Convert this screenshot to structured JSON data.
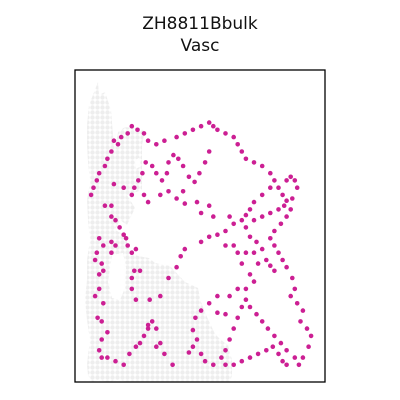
{
  "chart_data": {
    "type": "scatter",
    "title_line1": "ZH8811Bbulk",
    "title_line2": "Vasc",
    "xlabel": "",
    "ylabel": "",
    "grid": false,
    "legend": "none",
    "axis_ticks": false,
    "background_spot_color": "#eeeeee",
    "highlight_color": "#cc1f93",
    "tissue_outline": [
      [
        23,
        12
      ],
      [
        24,
        25
      ],
      [
        30,
        22
      ],
      [
        36,
        40
      ],
      [
        38,
        65
      ],
      [
        40,
        80
      ],
      [
        43,
        62
      ],
      [
        50,
        57
      ],
      [
        70,
        60
      ],
      [
        67,
        75
      ],
      [
        67,
        120
      ],
      [
        52,
        125
      ],
      [
        60,
        138
      ],
      [
        52,
        155
      ],
      [
        45,
        150
      ],
      [
        40,
        160
      ],
      [
        50,
        165
      ],
      [
        55,
        182
      ],
      [
        63,
        186
      ],
      [
        74,
        188
      ],
      [
        80,
        193
      ],
      [
        95,
        196
      ],
      [
        110,
        212
      ],
      [
        123,
        218
      ],
      [
        126,
        232
      ],
      [
        132,
        247
      ],
      [
        140,
        264
      ],
      [
        146,
        270
      ],
      [
        153,
        275
      ],
      [
        157,
        290
      ],
      [
        157,
        305
      ],
      [
        155,
        312
      ],
      [
        130,
        314
      ],
      [
        125,
        312
      ],
      [
        117,
        314
      ],
      [
        100,
        318
      ],
      [
        85,
        315
      ],
      [
        70,
        315
      ],
      [
        55,
        312
      ],
      [
        42,
        310
      ],
      [
        34,
        312
      ],
      [
        23,
        310
      ],
      [
        17,
        312
      ],
      [
        13,
        305
      ],
      [
        12,
        295
      ],
      [
        13,
        285
      ],
      [
        15,
        270
      ],
      [
        12,
        250
      ],
      [
        10,
        230
      ],
      [
        12,
        210
      ],
      [
        12,
        190
      ],
      [
        15,
        170
      ],
      [
        13,
        150
      ],
      [
        12,
        130
      ],
      [
        15,
        112
      ],
      [
        13,
        92
      ],
      [
        12,
        75
      ],
      [
        12,
        55
      ],
      [
        14,
        35
      ]
    ],
    "tissue_holes": [
      [
        [
          37,
          185
        ],
        [
          48,
          183
        ],
        [
          51,
          198
        ],
        [
          50,
          218
        ],
        [
          45,
          230
        ],
        [
          37,
          228
        ],
        [
          33,
          212
        ]
      ],
      [
        [
          60,
          90
        ],
        [
          64,
          88
        ],
        [
          66,
          96
        ],
        [
          61,
          99
        ]
      ]
    ],
    "highlight_points": [
      [
        33,
        95
      ],
      [
        33,
        155
      ],
      [
        45,
        160
      ],
      [
        55,
        170
      ],
      [
        70,
        170
      ],
      [
        75,
        180
      ],
      [
        90,
        170
      ],
      [
        100,
        165
      ],
      [
        110,
        175
      ],
      [
        118,
        165
      ],
      [
        120,
        182
      ],
      [
        135,
        180
      ],
      [
        140,
        195
      ],
      [
        150,
        185
      ],
      [
        155,
        200
      ],
      [
        175,
        200
      ],
      [
        170,
        240
      ],
      [
        180,
        240
      ],
      [
        185,
        250
      ],
      [
        195,
        250
      ],
      [
        205,
        250
      ],
      [
        210,
        265
      ],
      [
        190,
        265
      ],
      [
        200,
        280
      ],
      [
        205,
        290
      ],
      [
        195,
        300
      ],
      [
        185,
        300
      ],
      [
        175,
        310
      ],
      [
        160,
        310
      ],
      [
        150,
        320
      ],
      [
        140,
        330
      ],
      [
        133,
        340
      ],
      [
        160,
        333
      ],
      [
        170,
        335
      ],
      [
        130,
        357
      ],
      [
        135,
        370
      ],
      [
        130,
        380
      ],
      [
        125,
        388
      ],
      [
        140,
        390
      ],
      [
        145,
        400
      ],
      [
        155,
        405
      ],
      [
        105,
        405
      ],
      [
        95,
        390
      ],
      [
        90,
        375
      ],
      [
        85,
        380
      ],
      [
        85,
        355
      ],
      [
        80,
        345
      ],
      [
        75,
        350
      ],
      [
        77,
        315
      ],
      [
        60,
        315
      ],
      [
        55,
        300
      ],
      [
        55,
        285
      ],
      [
        65,
        275
      ],
      [
        58,
        275
      ],
      [
        55,
        250
      ],
      [
        60,
        245
      ],
      [
        48,
        230
      ],
      [
        50,
        240
      ],
      [
        45,
        225
      ],
      [
        30,
        235
      ],
      [
        35,
        240
      ],
      [
        40,
        215
      ],
      [
        35,
        205
      ],
      [
        30,
        200
      ],
      [
        30,
        185
      ],
      [
        22,
        185
      ],
      [
        15,
        230
      ],
      [
        20,
        240
      ],
      [
        12,
        250
      ],
      [
        10,
        260
      ],
      [
        15,
        280
      ],
      [
        20,
        275
      ],
      [
        18,
        265
      ],
      [
        30,
        250
      ],
      [
        15,
        300
      ],
      [
        10,
        310
      ],
      [
        20,
        320
      ],
      [
        13,
        340
      ],
      [
        18,
        345
      ],
      [
        25,
        360
      ],
      [
        18,
        370
      ],
      [
        15,
        385
      ],
      [
        18,
        395
      ],
      [
        25,
        395
      ],
      [
        35,
        400
      ],
      [
        45,
        405
      ],
      [
        52,
        390
      ],
      [
        60,
        380
      ],
      [
        65,
        375
      ],
      [
        70,
        365
      ],
      [
        75,
        355
      ],
      [
        90,
        310
      ],
      [
        100,
        285
      ],
      [
        110,
        270
      ],
      [
        115,
        255
      ],
      [
        120,
        245
      ],
      [
        140,
        235
      ],
      [
        150,
        228
      ],
      [
        160,
        225
      ],
      [
        170,
        220
      ],
      [
        180,
        210
      ],
      [
        190,
        205
      ],
      [
        195,
        198
      ],
      [
        200,
        190
      ],
      [
        205,
        180
      ],
      [
        215,
        170
      ],
      [
        225,
        160
      ],
      [
        230,
        150
      ],
      [
        225,
        140
      ],
      [
        215,
        130
      ],
      [
        205,
        125
      ],
      [
        195,
        120
      ],
      [
        190,
        110
      ],
      [
        185,
        100
      ],
      [
        180,
        90
      ],
      [
        170,
        85
      ],
      [
        160,
        80
      ],
      [
        155,
        75
      ],
      [
        150,
        70
      ],
      [
        140,
        75
      ],
      [
        130,
        80
      ],
      [
        120,
        85
      ],
      [
        110,
        90
      ],
      [
        95,
        95
      ],
      [
        85,
        100
      ],
      [
        75,
        95
      ],
      [
        70,
        85
      ],
      [
        62,
        80
      ],
      [
        55,
        75
      ],
      [
        50,
        85
      ],
      [
        42,
        90
      ],
      [
        38,
        100
      ],
      [
        30,
        110
      ],
      [
        25,
        120
      ],
      [
        22,
        130
      ],
      [
        15,
        140
      ],
      [
        12,
        150
      ],
      [
        8,
        160
      ],
      [
        5,
        170
      ],
      [
        150,
        110
      ],
      [
        145,
        125
      ],
      [
        138,
        140
      ],
      [
        132,
        152
      ],
      [
        125,
        145
      ],
      [
        118,
        130
      ],
      [
        112,
        120
      ],
      [
        106,
        115
      ],
      [
        100,
        125
      ],
      [
        98,
        140
      ],
      [
        92,
        150
      ],
      [
        85,
        140
      ],
      [
        80,
        130
      ],
      [
        72,
        125
      ],
      [
        68,
        140
      ],
      [
        63,
        150
      ],
      [
        58,
        160
      ],
      [
        230,
        275
      ],
      [
        225,
        268
      ],
      [
        220,
        260
      ],
      [
        215,
        245
      ],
      [
        208,
        235
      ],
      [
        200,
        228
      ],
      [
        195,
        215
      ],
      [
        205,
        205
      ],
      [
        215,
        200
      ],
      [
        225,
        195
      ],
      [
        235,
        190
      ],
      [
        242,
        185
      ],
      [
        245,
        178
      ],
      [
        240,
        170
      ],
      [
        235,
        160
      ],
      [
        245,
        150
      ],
      [
        250,
        145
      ],
      [
        255,
        150
      ],
      [
        258,
        160
      ],
      [
        252,
        175
      ],
      [
        250,
        190
      ],
      [
        245,
        200
      ],
      [
        238,
        210
      ],
      [
        230,
        220
      ],
      [
        225,
        230
      ],
      [
        230,
        240
      ],
      [
        235,
        250
      ],
      [
        240,
        260
      ],
      [
        245,
        270
      ],
      [
        252,
        285
      ],
      [
        255,
        300
      ],
      [
        250,
        310
      ],
      [
        258,
        320
      ],
      [
        265,
        330
      ],
      [
        262,
        345
      ],
      [
        270,
        355
      ],
      [
        275,
        365
      ],
      [
        272,
        380
      ],
      [
        265,
        395
      ],
      [
        260,
        405
      ],
      [
        255,
        395
      ],
      [
        245,
        385
      ],
      [
        238,
        375
      ],
      [
        230,
        365
      ],
      [
        222,
        355
      ],
      [
        215,
        345
      ],
      [
        208,
        335
      ],
      [
        200,
        325
      ],
      [
        195,
        315
      ],
      [
        190,
        325
      ],
      [
        185,
        340
      ],
      [
        180,
        355
      ],
      [
        175,
        370
      ],
      [
        170,
        385
      ],
      [
        165,
        395
      ],
      [
        170,
        405
      ],
      [
        180,
        405
      ],
      [
        190,
        400
      ],
      [
        200,
        395
      ],
      [
        210,
        390
      ],
      [
        220,
        385
      ],
      [
        228,
        380
      ],
      [
        235,
        390
      ],
      [
        240,
        400
      ],
      [
        245,
        405
      ]
    ]
  }
}
